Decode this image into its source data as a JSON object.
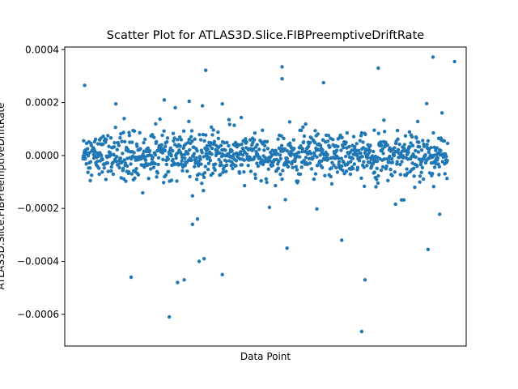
{
  "chart_data": {
    "type": "scatter",
    "title": "Scatter Plot for ATLAS3D.Slice.FIBPreemptiveDriftRate",
    "xlabel": "Data Point",
    "ylabel": "ATLAS3D.Slice.FIBPreemptiveDriftRate",
    "ylim": [
      -0.00072,
      0.00041
    ],
    "xlim": [
      -55,
      1155
    ],
    "grid": false,
    "x_ticks_visible": false,
    "y_ticks": [
      -0.0006,
      -0.0004,
      -0.0002,
      0.0,
      0.0002,
      0.0004
    ],
    "y_tick_labels": [
      "−0.0006",
      "−0.0004",
      "−0.0002",
      "0.0000",
      "0.0002",
      "0.0004"
    ],
    "series": [
      {
        "color": "#1f77b4",
        "n_points": 1100,
        "notable_outliers": [
          {
            "x": 5,
            "y": 0.000265
          },
          {
            "x": 145,
            "y": -0.00046
          },
          {
            "x": 260,
            "y": -0.00061
          },
          {
            "x": 285,
            "y": -0.00048
          },
          {
            "x": 305,
            "y": -0.00047
          },
          {
            "x": 320,
            "y": 0.000205
          },
          {
            "x": 330,
            "y": -0.00026
          },
          {
            "x": 345,
            "y": -0.00024
          },
          {
            "x": 350,
            "y": -0.0004
          },
          {
            "x": 365,
            "y": -0.00039
          },
          {
            "x": 370,
            "y": 0.000322
          },
          {
            "x": 420,
            "y": -0.00045
          },
          {
            "x": 420,
            "y": 0.000195
          },
          {
            "x": 600,
            "y": 0.000335
          },
          {
            "x": 600,
            "y": 0.00029
          },
          {
            "x": 615,
            "y": -0.00035
          },
          {
            "x": 705,
            "y": -0.000202
          },
          {
            "x": 725,
            "y": 0.000275
          },
          {
            "x": 780,
            "y": -0.00032
          },
          {
            "x": 840,
            "y": -0.000665
          },
          {
            "x": 850,
            "y": -0.00047
          },
          {
            "x": 890,
            "y": 0.00033
          },
          {
            "x": 1040,
            "y": -0.000355
          },
          {
            "x": 1055,
            "y": 0.000372
          },
          {
            "x": 1075,
            "y": -0.000222
          },
          {
            "x": 1120,
            "y": 0.000355
          }
        ],
        "bulk": {
          "center": 0.0,
          "std": 4e-05,
          "band": [
            -0.00015,
            0.00015
          ]
        }
      }
    ]
  }
}
